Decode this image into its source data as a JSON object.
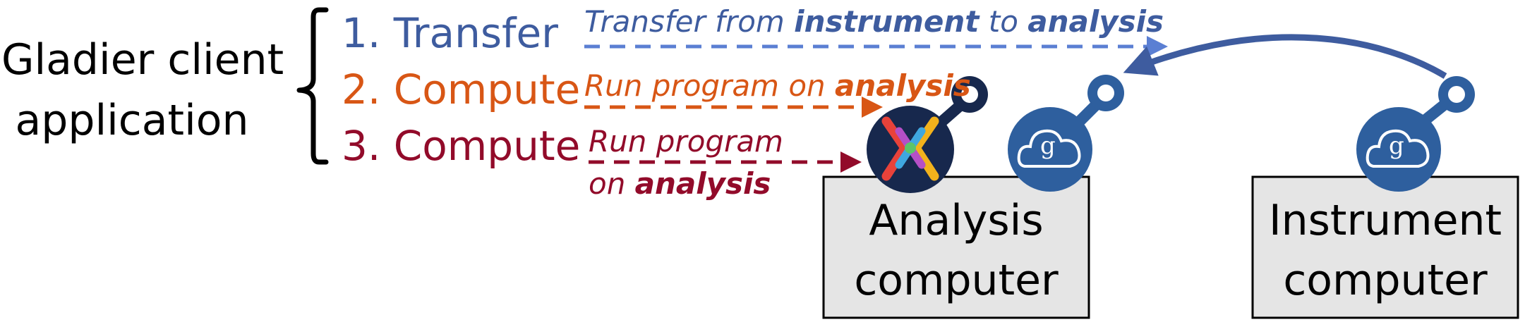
{
  "client": {
    "line1": "Gladier client",
    "line2": "application"
  },
  "steps": [
    {
      "label": "1. Transfer",
      "color": "#3e5c9f"
    },
    {
      "label": "2. Compute",
      "color": "#d85615"
    },
    {
      "label": "3. Compute",
      "color": "#920b2a"
    }
  ],
  "descriptions": {
    "transfer": {
      "pre": "Transfer from ",
      "b1": "instrument",
      "mid": " to ",
      "b2": "analysis"
    },
    "compute1": {
      "pre": "Run program on ",
      "b1": "analysis"
    },
    "compute2": {
      "line1": "Run program",
      "pre": "on ",
      "b1": "analysis"
    }
  },
  "analysis_box": {
    "line1": "Analysis",
    "line2": "computer"
  },
  "instrument_box": {
    "line1": "Instrument",
    "line2": "computer"
  },
  "icons": {
    "globus_glyph": "g",
    "funcx_color": "#17284d",
    "globus_color": "#2e5f9e"
  }
}
